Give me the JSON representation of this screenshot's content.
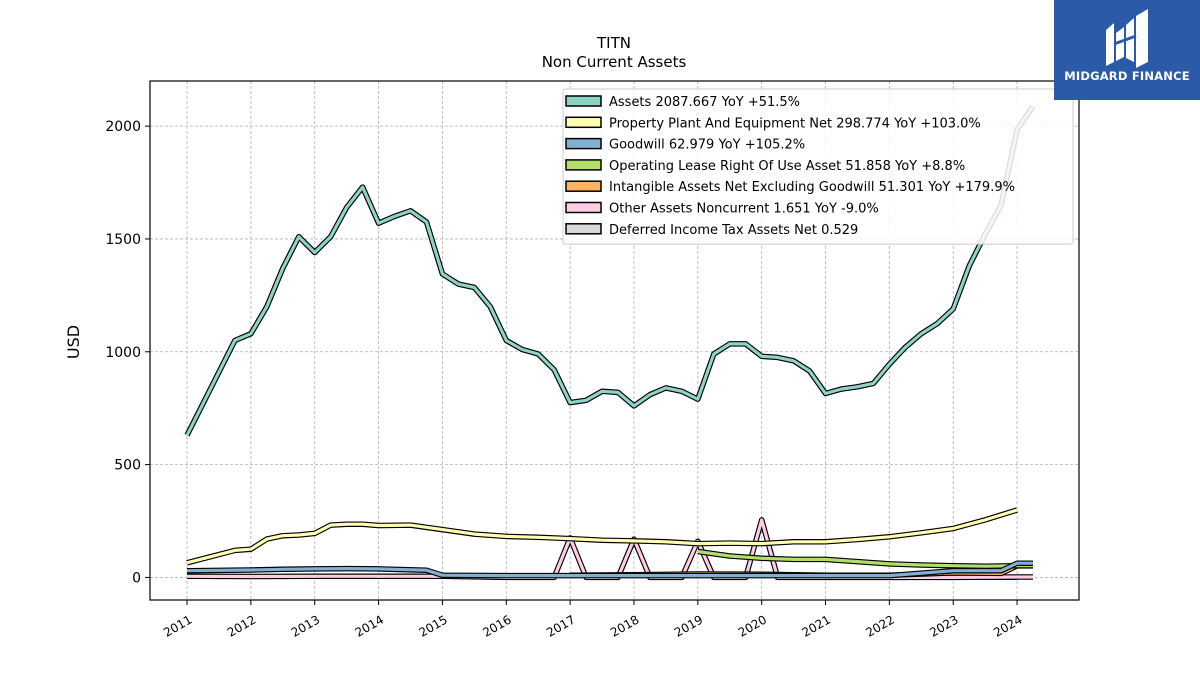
{
  "brand": {
    "name": "MIDGARD FINANCE",
    "bg_color": "#2a5aa8"
  },
  "chart_data": {
    "type": "line",
    "title": "TITN",
    "subtitle": "Non Current  Assets",
    "ylabel": "USD",
    "xlabel": "",
    "ylim": [
      -100,
      2200
    ],
    "xlim": [
      2010.42,
      2024.97
    ],
    "yticks": [
      0,
      500,
      1000,
      1500,
      2000
    ],
    "xticks": [
      2011,
      2012,
      2013,
      2014,
      2015,
      2016,
      2017,
      2018,
      2019,
      2020,
      2021,
      2022,
      2023,
      2024
    ],
    "grid": true,
    "legend_position": "top-right",
    "series": [
      {
        "name": "Assets",
        "legend": "Assets  2087.667 YoY +51.5%",
        "color": "#8dd3c7",
        "x": [
          2011.0,
          2011.75,
          2012.0,
          2012.25,
          2012.5,
          2012.75,
          2013.0,
          2013.25,
          2013.5,
          2013.75,
          2014.0,
          2014.25,
          2014.5,
          2014.75,
          2015.0,
          2015.25,
          2015.5,
          2015.75,
          2016.0,
          2016.25,
          2016.5,
          2016.75,
          2017.0,
          2017.25,
          2017.5,
          2017.75,
          2018.0,
          2018.25,
          2018.5,
          2018.75,
          2019.0,
          2019.25,
          2019.5,
          2019.75,
          2020.0,
          2020.25,
          2020.5,
          2020.75,
          2021.0,
          2021.25,
          2021.5,
          2021.75,
          2022.0,
          2022.25,
          2022.5,
          2022.75,
          2023.0,
          2023.25,
          2023.5,
          2023.75,
          2024.0,
          2024.25
        ],
        "values": [
          630,
          1050,
          1080,
          1200,
          1370,
          1510,
          1440,
          1510,
          1640,
          1730,
          1570,
          1600,
          1625,
          1575,
          1345,
          1300,
          1285,
          1200,
          1050,
          1010,
          990,
          920,
          775,
          785,
          825,
          820,
          760,
          810,
          840,
          825,
          790,
          990,
          1035,
          1035,
          980,
          975,
          960,
          915,
          815,
          835,
          845,
          860,
          945,
          1020,
          1080,
          1125,
          1190,
          1380,
          1520,
          1650,
          1985,
          2088
        ]
      },
      {
        "name": "Property Plant And Equipment Net",
        "legend": "Property Plant And Equipment Net  298.774 YoY +103.0%",
        "color": "#ffffb3",
        "x": [
          2011.0,
          2011.75,
          2012.0,
          2012.25,
          2012.5,
          2012.75,
          2013.0,
          2013.25,
          2013.5,
          2013.75,
          2014.0,
          2014.5,
          2015.0,
          2015.5,
          2016.0,
          2016.5,
          2017.0,
          2017.5,
          2018.0,
          2018.5,
          2019.0,
          2019.5,
          2020.0,
          2020.5,
          2021.0,
          2021.5,
          2022.0,
          2022.5,
          2023.0,
          2023.5,
          2024.0
        ],
        "values": [
          65,
          120,
          125,
          170,
          185,
          188,
          195,
          232,
          236,
          236,
          230,
          232,
          212,
          192,
          182,
          178,
          172,
          165,
          162,
          158,
          150,
          152,
          150,
          158,
          158,
          168,
          180,
          198,
          217,
          255,
          299
        ]
      },
      {
        "name": "Goodwill",
        "legend": "Goodwill  62.979 YoY +105.2%",
        "color": "#80b1d3",
        "x": [
          2011.0,
          2012.0,
          2012.5,
          2013.0,
          2013.5,
          2014.0,
          2014.75,
          2015.0,
          2016.0,
          2017.0,
          2018.0,
          2019.0,
          2020.0,
          2021.0,
          2022.0,
          2023.0,
          2023.75,
          2024.0,
          2024.25
        ],
        "values": [
          30,
          33,
          36,
          38,
          39,
          38,
          32,
          10,
          8,
          8,
          8,
          8,
          8,
          8,
          8,
          30,
          30,
          63,
          63
        ]
      },
      {
        "name": "Operating Lease Right Of Use Asset",
        "legend": "Operating Lease Right Of Use Asset  51.858 YoY +8.8%",
        "color": "#b3de69",
        "x": [
          2019.0,
          2019.5,
          2020.0,
          2020.5,
          2021.0,
          2021.5,
          2022.0,
          2022.5,
          2023.0,
          2023.5,
          2024.0,
          2024.25
        ],
        "values": [
          115,
          95,
          85,
          80,
          80,
          70,
          60,
          55,
          52,
          50,
          52,
          52
        ]
      },
      {
        "name": "Intangible Assets Net Excluding Goodwill",
        "legend": "Intangible Assets Net Excluding Goodwill  51.301 YoY +179.9%",
        "color": "#fdb462",
        "x": [
          2017.0,
          2018.0,
          2019.0,
          2020.0,
          2021.0,
          2022.0,
          2023.0,
          2023.75,
          2024.0,
          2024.25
        ],
        "values": [
          10,
          12,
          15,
          14,
          10,
          10,
          20,
          18,
          51,
          51
        ]
      },
      {
        "name": "Other Assets Noncurrent",
        "legend": "Other Assets Noncurrent  1.651 YoY -9.0%",
        "color": "#fccde5",
        "x": [
          2011.0,
          2012.0,
          2013.0,
          2014.0,
          2015.0,
          2016.0,
          2016.75,
          2017.0,
          2017.25,
          2017.75,
          2018.0,
          2018.25,
          2018.75,
          2019.0,
          2019.25,
          2019.75,
          2020.0,
          2020.25,
          2020.75,
          2021.0,
          2022.0,
          2023.0,
          2024.0,
          2024.25
        ],
        "values": [
          5,
          4,
          5,
          5,
          5,
          0,
          0,
          175,
          0,
          0,
          170,
          0,
          0,
          160,
          0,
          0,
          255,
          0,
          0,
          0,
          0,
          0,
          2,
          2
        ]
      },
      {
        "name": "Deferred Income Tax Assets Net",
        "legend": "Deferred Income Tax Assets Net  0.529",
        "color": "#d9d9d9",
        "x": [
          2021.0,
          2022.0,
          2023.0,
          2024.0
        ],
        "values": [
          0.5,
          0.5,
          0.5,
          0.5
        ]
      }
    ]
  }
}
